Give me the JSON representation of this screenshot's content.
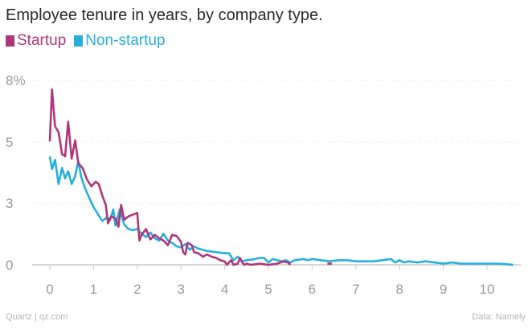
{
  "chart_data": {
    "type": "line",
    "title": "Employee tenure in years, by company type.",
    "xlabel": "",
    "ylabel": "",
    "xlim": [
      -0.3,
      10.9
    ],
    "ylim": [
      0,
      8
    ],
    "x_ticks": [
      0,
      1,
      2,
      3,
      4,
      5,
      6,
      7,
      8,
      9,
      10
    ],
    "y_ticks": [
      {
        "value": 0,
        "label": "0"
      },
      {
        "value": 2.67,
        "label": "3"
      },
      {
        "value": 5.33,
        "label": "5"
      },
      {
        "value": 8,
        "label": "8%"
      }
    ],
    "grid": "horizontal",
    "legend_position": "top-left",
    "series": [
      {
        "name": "Startup",
        "color": "#b0367a",
        "points": [
          [
            0,
            5.35
          ],
          [
            0.05,
            7.6
          ],
          [
            0.12,
            6.0
          ],
          [
            0.2,
            5.75
          ],
          [
            0.28,
            4.8
          ],
          [
            0.35,
            4.7
          ],
          [
            0.42,
            6.2
          ],
          [
            0.5,
            4.6
          ],
          [
            0.58,
            5.4
          ],
          [
            0.65,
            4.4
          ],
          [
            0.75,
            4.2
          ],
          [
            0.85,
            3.7
          ],
          [
            0.95,
            3.4
          ],
          [
            1.05,
            3.6
          ],
          [
            1.12,
            3.5
          ],
          [
            1.2,
            3.0
          ],
          [
            1.28,
            2.6
          ],
          [
            1.33,
            1.8
          ],
          [
            1.4,
            2.1
          ],
          [
            1.5,
            2.0
          ],
          [
            1.57,
            1.65
          ],
          [
            1.63,
            2.6
          ],
          [
            1.7,
            1.95
          ],
          [
            1.8,
            2.1
          ],
          [
            2.0,
            2.25
          ],
          [
            2.05,
            1.05
          ],
          [
            2.1,
            1.3
          ],
          [
            2.2,
            1.55
          ],
          [
            2.3,
            1.1
          ],
          [
            2.4,
            1.3
          ],
          [
            2.5,
            1.15
          ],
          [
            2.6,
            1.05
          ],
          [
            2.7,
            0.85
          ],
          [
            2.8,
            1.3
          ],
          [
            2.9,
            1.25
          ],
          [
            3.0,
            1.0
          ],
          [
            3.05,
            0.55
          ],
          [
            3.1,
            0.45
          ],
          [
            3.15,
            0.95
          ],
          [
            3.25,
            0.85
          ],
          [
            3.3,
            0.55
          ],
          [
            3.4,
            0.5
          ],
          [
            3.5,
            0.35
          ],
          [
            3.6,
            0.45
          ],
          [
            3.7,
            0.35
          ],
          [
            3.8,
            0.3
          ],
          [
            3.9,
            0.2
          ],
          [
            4.0,
            0.15
          ],
          [
            4.05,
            0.0
          ],
          [
            4.1,
            0.1
          ],
          [
            4.15,
            0.2
          ],
          [
            4.2,
            0.0
          ],
          [
            4.3,
            0.05
          ],
          [
            4.35,
            0.3
          ],
          [
            4.4,
            0.1
          ],
          [
            4.45,
            0.0
          ],
          [
            4.5,
            0.05
          ],
          [
            4.6,
            0.0
          ],
          [
            4.8,
            0.05
          ],
          [
            5.0,
            0.0
          ],
          [
            5.2,
            0.05
          ],
          [
            5.35,
            0.15
          ],
          [
            5.45,
            0.1
          ],
          [
            5.5,
            0.0
          ]
        ]
      },
      {
        "name": "Startup",
        "color": "#b0367a",
        "points": [
          [
            6.35,
            0.05
          ],
          [
            6.45,
            0.05
          ]
        ]
      },
      {
        "name": "Non-startup",
        "color": "#27b0df",
        "points": [
          [
            0,
            4.7
          ],
          [
            0.05,
            4.15
          ],
          [
            0.12,
            4.55
          ],
          [
            0.2,
            3.5
          ],
          [
            0.28,
            4.2
          ],
          [
            0.35,
            3.75
          ],
          [
            0.42,
            4.05
          ],
          [
            0.5,
            3.5
          ],
          [
            0.58,
            3.85
          ],
          [
            0.65,
            4.5
          ],
          [
            0.72,
            3.8
          ],
          [
            0.8,
            3.35
          ],
          [
            0.9,
            2.9
          ],
          [
            1.0,
            2.5
          ],
          [
            1.1,
            2.2
          ],
          [
            1.2,
            1.9
          ],
          [
            1.3,
            2.05
          ],
          [
            1.38,
            1.95
          ],
          [
            1.45,
            2.4
          ],
          [
            1.5,
            1.7
          ],
          [
            1.6,
            2.4
          ],
          [
            1.7,
            1.75
          ],
          [
            1.8,
            1.55
          ],
          [
            1.9,
            1.5
          ],
          [
            2.0,
            1.55
          ],
          [
            2.1,
            1.35
          ],
          [
            2.2,
            1.2
          ],
          [
            2.3,
            1.4
          ],
          [
            2.4,
            1.15
          ],
          [
            2.5,
            1.05
          ],
          [
            2.6,
            1.35
          ],
          [
            2.7,
            1.05
          ],
          [
            2.8,
            0.95
          ],
          [
            2.9,
            0.8
          ],
          [
            3.0,
            0.75
          ],
          [
            3.1,
            0.9
          ],
          [
            3.2,
            0.65
          ],
          [
            3.3,
            0.8
          ],
          [
            3.4,
            0.7
          ],
          [
            3.6,
            0.6
          ],
          [
            3.8,
            0.55
          ],
          [
            4.0,
            0.5
          ],
          [
            4.1,
            0.5
          ],
          [
            4.2,
            0.2
          ],
          [
            4.3,
            0.35
          ],
          [
            4.4,
            0.15
          ],
          [
            4.5,
            0.2
          ],
          [
            4.7,
            0.25
          ],
          [
            4.8,
            0.3
          ],
          [
            4.9,
            0.3
          ],
          [
            5.0,
            0.1
          ],
          [
            5.1,
            0.25
          ],
          [
            5.2,
            0.2
          ],
          [
            5.3,
            0.15
          ],
          [
            5.4,
            0.2
          ],
          [
            5.5,
            0.1
          ],
          [
            5.6,
            0.2
          ],
          [
            5.8,
            0.25
          ],
          [
            5.9,
            0.2
          ],
          [
            6.0,
            0.25
          ],
          [
            6.2,
            0.2
          ],
          [
            6.4,
            0.15
          ],
          [
            6.6,
            0.2
          ],
          [
            6.8,
            0.2
          ],
          [
            7.0,
            0.15
          ],
          [
            7.2,
            0.15
          ],
          [
            7.4,
            0.15
          ],
          [
            7.6,
            0.2
          ],
          [
            7.8,
            0.25
          ],
          [
            7.9,
            0.1
          ],
          [
            8.0,
            0.2
          ],
          [
            8.1,
            0.1
          ],
          [
            8.2,
            0.15
          ],
          [
            8.4,
            0.1
          ],
          [
            8.6,
            0.15
          ],
          [
            8.8,
            0.1
          ],
          [
            9.0,
            0.05
          ],
          [
            9.2,
            0.1
          ],
          [
            9.4,
            0.05
          ],
          [
            9.6,
            0.05
          ],
          [
            9.8,
            0.05
          ],
          [
            10.0,
            0.05
          ],
          [
            10.2,
            0.05
          ],
          [
            10.4,
            0.03
          ],
          [
            10.6,
            0.0
          ]
        ]
      }
    ]
  },
  "legend": [
    {
      "label": "Startup",
      "color": "#b0367a"
    },
    {
      "label": "Non-startup",
      "color": "#27b0df"
    }
  ],
  "footer": {
    "source_left": "Quartz | qz.com",
    "source_right": "Data: Namely"
  }
}
